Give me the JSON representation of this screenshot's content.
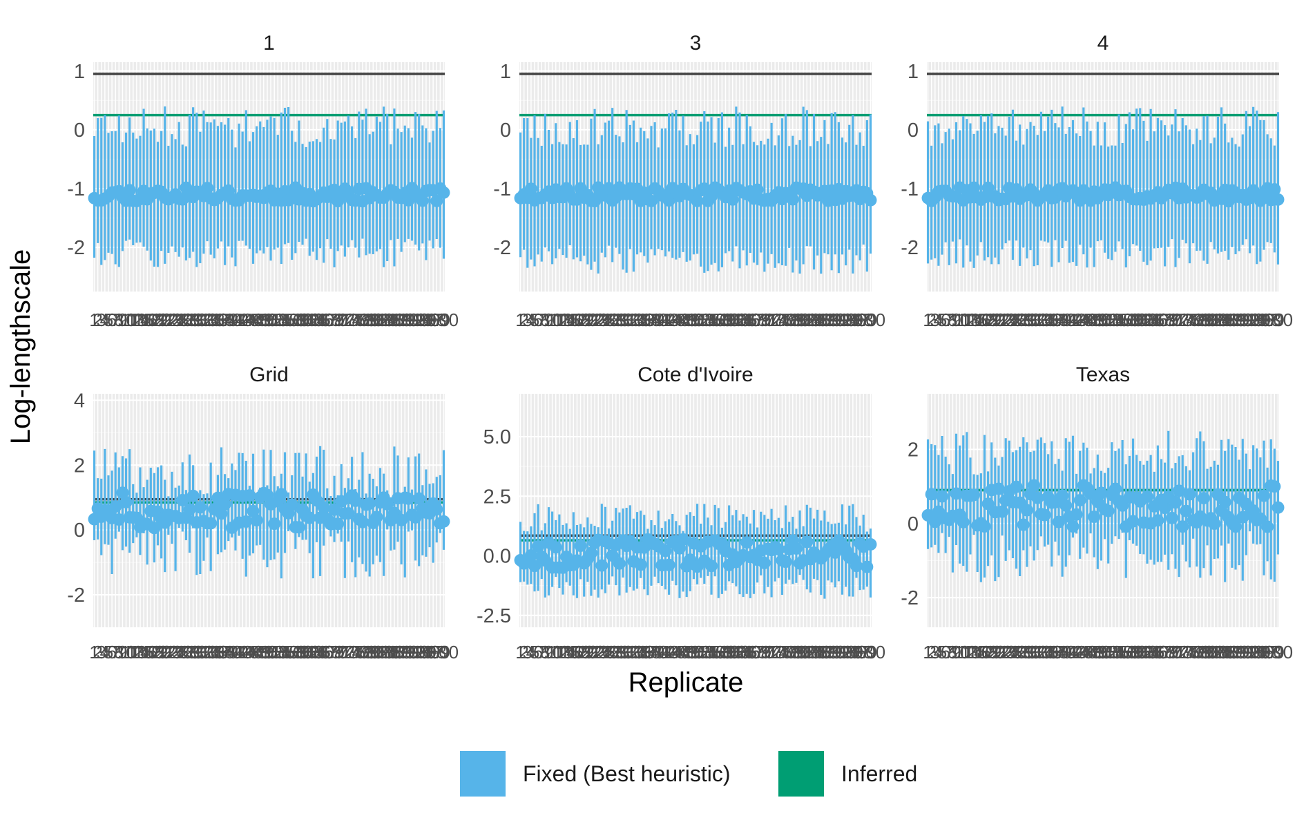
{
  "chart_data": {
    "type": "errorbar",
    "xlabel": "Replicate",
    "ylabel": "Log-lengthscale",
    "x_range": [
      1,
      100
    ],
    "x_tick_labels": [
      "1",
      "2",
      "3",
      "4",
      "5",
      "6",
      "7",
      "8",
      "9",
      "10",
      "11",
      "12",
      "13",
      "14",
      "15",
      "16",
      "17",
      "18",
      "19",
      "20",
      "21",
      "22",
      "23",
      "24",
      "25",
      "26",
      "27",
      "28",
      "29",
      "30",
      "31",
      "32",
      "33",
      "34",
      "35",
      "36",
      "37",
      "38",
      "39",
      "40",
      "41",
      "42",
      "43",
      "44",
      "45",
      "46",
      "47",
      "48",
      "49",
      "50",
      "51",
      "52",
      "53",
      "54",
      "55",
      "56",
      "57",
      "58",
      "59",
      "60",
      "61",
      "62",
      "63",
      "64",
      "65",
      "66",
      "67",
      "68",
      "69",
      "70",
      "71",
      "72",
      "73",
      "74",
      "75",
      "76",
      "77",
      "78",
      "79",
      "80",
      "81",
      "82",
      "83",
      "84",
      "85",
      "86",
      "87",
      "88",
      "89",
      "90",
      "91",
      "92",
      "93",
      "94",
      "95",
      "96",
      "97",
      "98",
      "99",
      "100"
    ],
    "legend": {
      "position": "bottom",
      "entries": [
        {
          "label": "Fixed (Best heuristic)",
          "color": "#56b4e9"
        },
        {
          "label": "Inferred",
          "color": "#009e73"
        }
      ]
    },
    "grid": true,
    "panels": [
      {
        "title": "1",
        "ylim": [
          -2.75,
          1.15
        ],
        "y_ticks": [
          -2,
          -1,
          0,
          1
        ],
        "y_tick_labels": [
          "-2",
          "-1",
          "0",
          "1"
        ],
        "reference_lines": [
          {
            "y": 0.95,
            "color": "#444444"
          },
          {
            "y": 0.25,
            "color": "#009e73"
          }
        ],
        "center_mean": -1.1,
        "center_spread": 0.12,
        "upper_mean": 0.05,
        "upper_spread": 0.35,
        "lower_mean": -2.1,
        "lower_spread": 0.25,
        "seed": 11
      },
      {
        "title": "3",
        "ylim": [
          -2.75,
          1.15
        ],
        "y_ticks": [
          -2,
          -1,
          0,
          1
        ],
        "y_tick_labels": [
          "-2",
          "-1",
          "0",
          "1"
        ],
        "reference_lines": [
          {
            "y": 0.95,
            "color": "#444444"
          },
          {
            "y": 0.25,
            "color": "#009e73"
          }
        ],
        "center_mean": -1.1,
        "center_spread": 0.12,
        "upper_mean": 0.05,
        "upper_spread": 0.35,
        "lower_mean": -2.2,
        "lower_spread": 0.25,
        "seed": 23
      },
      {
        "title": "4",
        "ylim": [
          -2.75,
          1.15
        ],
        "y_ticks": [
          -2,
          -1,
          0,
          1
        ],
        "y_tick_labels": [
          "-2",
          "-1",
          "0",
          "1"
        ],
        "reference_lines": [
          {
            "y": 0.95,
            "color": "#444444"
          },
          {
            "y": 0.25,
            "color": "#009e73"
          }
        ],
        "center_mean": -1.1,
        "center_spread": 0.12,
        "upper_mean": 0.05,
        "upper_spread": 0.35,
        "lower_mean": -2.1,
        "lower_spread": 0.25,
        "seed": 37
      },
      {
        "title": "Grid",
        "ylim": [
          -3.0,
          4.2
        ],
        "y_ticks": [
          -2,
          0,
          2,
          4
        ],
        "y_tick_labels": [
          "-2",
          "0",
          "2",
          "4"
        ],
        "reference_lines": [
          {
            "y": 0.95,
            "color": "#444444"
          },
          {
            "y": 0.85,
            "color": "#009e73"
          }
        ],
        "center_mean": 0.6,
        "center_spread": 0.55,
        "upper_mean": 1.8,
        "upper_spread": 0.8,
        "lower_mean": -0.7,
        "lower_spread": 0.8,
        "seed": 51
      },
      {
        "title": "Cote d'Ivoire",
        "ylim": [
          -3.0,
          6.8
        ],
        "y_ticks": [
          -2.5,
          0.0,
          2.5,
          5.0
        ],
        "y_tick_labels": [
          "-2.5",
          "0.0",
          "2.5",
          "5.0"
        ],
        "reference_lines": [
          {
            "y": 0.85,
            "color": "#444444"
          },
          {
            "y": 0.65,
            "color": "#009e73"
          }
        ],
        "center_mean": 0.1,
        "center_spread": 0.6,
        "upper_mean": 1.6,
        "upper_spread": 0.6,
        "lower_mean": -1.3,
        "lower_spread": 0.5,
        "seed": 67
      },
      {
        "title": "Texas",
        "ylim": [
          -2.8,
          3.5
        ],
        "y_ticks": [
          -2,
          0,
          2
        ],
        "y_tick_labels": [
          "-2",
          "0",
          "2"
        ],
        "reference_lines": [
          {
            "y": 0.9,
            "color": "#444444"
          },
          {
            "y": 0.9,
            "color": "#009e73"
          }
        ],
        "center_mean": 0.5,
        "center_spread": 0.6,
        "upper_mean": 1.9,
        "upper_spread": 0.6,
        "lower_mean": -0.9,
        "lower_spread": 0.7,
        "seed": 83
      }
    ]
  }
}
